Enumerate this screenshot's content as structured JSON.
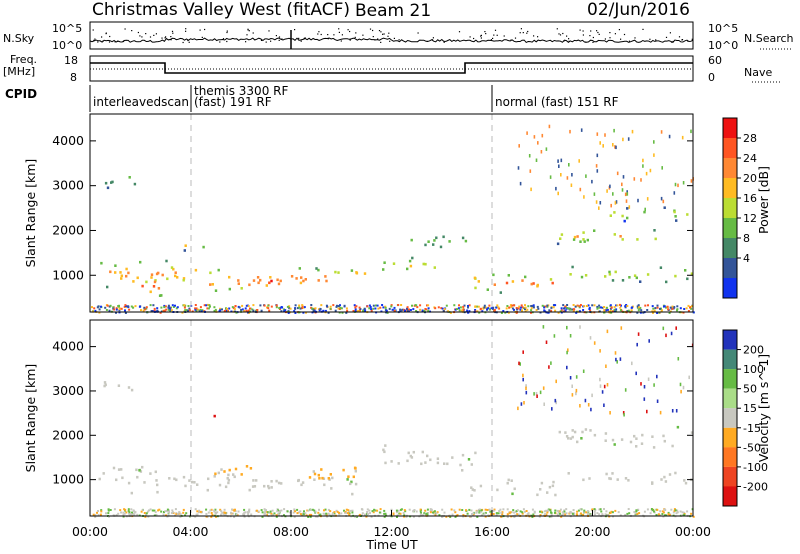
{
  "header": {
    "title": "Christmas Valley West (fitACF)",
    "beam": "Beam 21",
    "date": "02/Jun/2016"
  },
  "strip_labels": {
    "nsky": "N.Sky",
    "nsearch": "N.Search",
    "freq_line1": "Freq.",
    "freq_line2": "[MHz]",
    "nave": "Nave",
    "cpid": "CPID"
  },
  "strip_ticks": {
    "noise_left": [
      "10^5",
      "10^0"
    ],
    "noise_right": [
      "10^5",
      "10^0"
    ],
    "freq_left": [
      "18",
      "8"
    ],
    "freq_right": [
      "60",
      "0"
    ]
  },
  "cpid_segments": [
    {
      "label": "interleavedscan",
      "start_hour": 0
    },
    {
      "label": "themis 3300 RF",
      "start_hour": 4
    },
    {
      "label": "(fast) 191 RF",
      "start_hour": 4
    },
    {
      "label": "normal (fast) 151 RF",
      "start_hour": 16
    }
  ],
  "power_colorbar": {
    "label": "Power [dB]",
    "ticks": [
      "28",
      "24",
      "20",
      "16",
      "12",
      "8",
      "4"
    ],
    "colors": [
      "#ee1111",
      "#ff5522",
      "#ff8833",
      "#ffbb22",
      "#bbdd33",
      "#66bb44",
      "#448866",
      "#335599",
      "#1133ee"
    ]
  },
  "velocity_colorbar": {
    "label": "Velocity [m s^-1]",
    "ticks": [
      "200",
      "100",
      "50",
      "15",
      "-15",
      "-50",
      "-100",
      "-200"
    ],
    "colors": [
      "#2233bb",
      "#448877",
      "#66bb44",
      "#aadd88",
      "#c8c8c0",
      "#ffaa22",
      "#ff7722",
      "#ee4422",
      "#dd1111"
    ]
  },
  "time_axis": {
    "label": "Time UT",
    "ticks": [
      "00:00",
      "04:00",
      "08:00",
      "12:00",
      "16:00",
      "20:00",
      "00:00"
    ]
  },
  "chart_data": [
    {
      "type": "heatmap",
      "name": "power",
      "ylabel": "Slant Range [km]",
      "xlabel": "",
      "xlim_hours": [
        0,
        24
      ],
      "ylim": [
        180,
        4600
      ],
      "yticks": [
        1000,
        2000,
        3000,
        4000
      ],
      "vlines_hours": [
        4,
        16
      ],
      "echo_bands": [
        {
          "t0": 0.3,
          "t1": 4.3,
          "r_center": 1050,
          "r_half": 300,
          "level": 0.78
        },
        {
          "t0": 1.6,
          "t1": 2.9,
          "r_center": 780,
          "r_half": 260,
          "level": 0.92
        },
        {
          "t0": 0.5,
          "t1": 1.9,
          "r_center": 3150,
          "r_half": 160,
          "level": 0.42
        },
        {
          "t0": 3.4,
          "t1": 4.6,
          "r_center": 1700,
          "r_half": 110,
          "level": 0.55
        },
        {
          "t0": 4.6,
          "t1": 7.8,
          "r_center": 900,
          "r_half": 280,
          "level": 0.88
        },
        {
          "t0": 7.8,
          "t1": 9.8,
          "r_center": 950,
          "r_half": 250,
          "level": 0.82
        },
        {
          "t0": 9.8,
          "t1": 11.0,
          "r_center": 1050,
          "r_half": 180,
          "level": 0.7
        },
        {
          "t0": 11.5,
          "t1": 13.8,
          "r_center": 1250,
          "r_half": 180,
          "level": 0.6
        },
        {
          "t0": 12.5,
          "t1": 15.3,
          "r_center": 1800,
          "r_half": 150,
          "level": 0.45
        },
        {
          "t0": 15.0,
          "t1": 18.5,
          "r_center": 850,
          "r_half": 220,
          "level": 0.82
        },
        {
          "t0": 18.2,
          "t1": 22.6,
          "r_center": 1900,
          "r_half": 160,
          "level": 0.7
        },
        {
          "t0": 20.6,
          "t1": 24.0,
          "r_center": 2400,
          "r_half": 150,
          "level": 0.5
        },
        {
          "t0": 19.0,
          "t1": 24.0,
          "r_center": 1050,
          "r_half": 170,
          "level": 0.55
        }
      ]
    },
    {
      "type": "heatmap",
      "name": "velocity",
      "ylabel": "Slant Range [km]",
      "xlabel": "Time UT",
      "xlim_hours": [
        0,
        24
      ],
      "ylim": [
        180,
        4600
      ],
      "yticks": [
        1000,
        2000,
        3000,
        4000
      ],
      "vlines_hours": [
        4,
        16
      ],
      "echo_bands": [
        {
          "t0": 0.3,
          "t1": 4.3,
          "r_center": 1050,
          "r_half": 300,
          "vel": 0
        },
        {
          "t0": 0.5,
          "t1": 1.9,
          "r_center": 3150,
          "r_half": 160,
          "vel": 0
        },
        {
          "t0": 4.6,
          "t1": 11.0,
          "r_center": 1000,
          "r_half": 270,
          "vel": 0
        },
        {
          "t0": 8.3,
          "t1": 10.6,
          "r_center": 1150,
          "r_half": 230,
          "vel": -40
        },
        {
          "t0": 4.4,
          "t1": 6.8,
          "r_center": 1250,
          "r_half": 120,
          "vel": -40
        },
        {
          "t0": 11.5,
          "t1": 15.3,
          "r_center": 1500,
          "r_half": 280,
          "vel": 0
        },
        {
          "t0": 15.0,
          "t1": 18.5,
          "r_center": 850,
          "r_half": 220,
          "vel": 0
        },
        {
          "t0": 18.2,
          "t1": 24.0,
          "r_center": 2000,
          "r_half": 220,
          "vel": 0
        },
        {
          "t0": 19.0,
          "t1": 24.0,
          "r_center": 1050,
          "r_half": 170,
          "vel": 0
        },
        {
          "t0": 4.9,
          "t1": 5.2,
          "r_center": 2450,
          "r_half": 120,
          "vel": -200
        }
      ]
    }
  ]
}
